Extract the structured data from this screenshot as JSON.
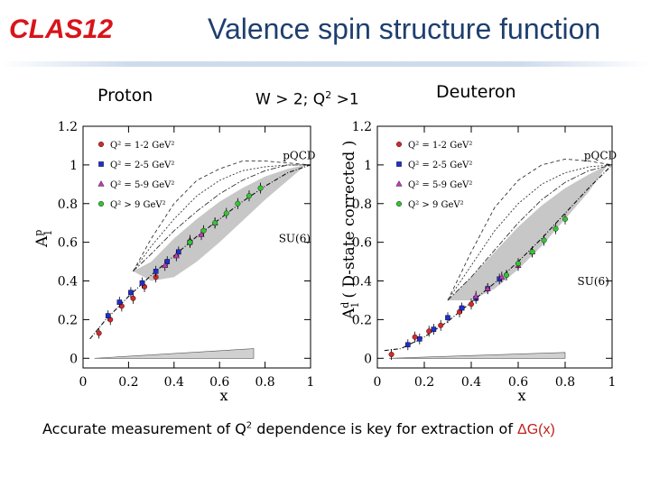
{
  "header": {
    "logo": "CLAS12",
    "title": "Valence spin structure function"
  },
  "labels": {
    "proton": "Proton",
    "kinematics_pre": "W > 2; Q",
    "kinematics_exp": "2",
    "kinematics_post": " >1",
    "deuteron": "Deuteron"
  },
  "footer": {
    "text_pre": "Accurate measurement of Q",
    "text_exp": "2",
    "text_mid": " dependence is key for extraction of ",
    "text_hl": "ΔG(x)"
  },
  "colors": {
    "q2_1_2": "#d42a2a",
    "q2_2_5": "#1f2fd0",
    "q2_5_9": "#c03ab8",
    "q2_gt9": "#36c436",
    "band": "#b4b4b4"
  },
  "chart_data": [
    {
      "name": "proton",
      "type": "scatter",
      "xlabel": "x",
      "ylabel": "A",
      "ylabel_sup": "p",
      "ylabel_sub": "1",
      "xlim": [
        0,
        1
      ],
      "ylim": [
        -0.05,
        1.2
      ],
      "x_ticks": [
        "0",
        "0.2",
        "0.4",
        "0.6",
        "0.8",
        "1"
      ],
      "y_ticks": [
        "0",
        "0.2",
        "0.4",
        "0.6",
        "0.8",
        "1",
        "1.2"
      ],
      "x_tick_values": [
        0,
        0.2,
        0.4,
        0.6,
        0.8,
        1
      ],
      "y_tick_values": [
        0,
        0.2,
        0.4,
        0.6,
        0.8,
        1.0,
        1.2
      ],
      "legend": [
        "Q² = 1-2 GeV²",
        "Q² = 2-5 GeV²",
        "Q² = 5-9 GeV²",
        "Q² > 9 GeV²"
      ],
      "annotations": [
        {
          "text": "pQCD",
          "x": 0.95,
          "y": 1.03
        },
        {
          "text": "SU(6)",
          "x": 0.93,
          "y": 0.6
        }
      ],
      "series": [
        {
          "name": "Q² = 1-2 GeV²",
          "color_key": "q2_1_2",
          "points": [
            [
              0.07,
              0.13
            ],
            [
              0.12,
              0.2
            ],
            [
              0.17,
              0.27
            ],
            [
              0.22,
              0.31
            ],
            [
              0.27,
              0.37
            ],
            [
              0.32,
              0.42
            ]
          ]
        },
        {
          "name": "Q² = 2-5 GeV²",
          "color_key": "q2_2_5",
          "points": [
            [
              0.11,
              0.22
            ],
            [
              0.16,
              0.29
            ],
            [
              0.21,
              0.34
            ],
            [
              0.26,
              0.39
            ],
            [
              0.32,
              0.45
            ],
            [
              0.37,
              0.5
            ],
            [
              0.42,
              0.55
            ],
            [
              0.47,
              0.6
            ]
          ]
        },
        {
          "name": "Q² = 5-9 GeV²",
          "color_key": "q2_5_9",
          "points": [
            [
              0.36,
              0.48
            ],
            [
              0.41,
              0.53
            ],
            [
              0.47,
              0.61
            ],
            [
              0.52,
              0.64
            ],
            [
              0.58,
              0.7
            ]
          ]
        },
        {
          "name": "Q² > 9 GeV²",
          "color_key": "q2_gt9",
          "points": [
            [
              0.47,
              0.6
            ],
            [
              0.53,
              0.66
            ],
            [
              0.58,
              0.7
            ],
            [
              0.63,
              0.75
            ],
            [
              0.68,
              0.8
            ],
            [
              0.73,
              0.84
            ],
            [
              0.78,
              0.88
            ]
          ]
        }
      ],
      "curve": [
        [
          0.03,
          0.1
        ],
        [
          0.1,
          0.2
        ],
        [
          0.2,
          0.32
        ],
        [
          0.3,
          0.43
        ],
        [
          0.4,
          0.53
        ],
        [
          0.5,
          0.63
        ],
        [
          0.6,
          0.72
        ],
        [
          0.7,
          0.81
        ],
        [
          0.8,
          0.89
        ],
        [
          0.9,
          0.96
        ],
        [
          1.0,
          1.0
        ]
      ],
      "band_upper": [
        [
          0.22,
          0.45
        ],
        [
          0.3,
          0.5
        ],
        [
          0.4,
          0.62
        ],
        [
          0.5,
          0.72
        ],
        [
          0.6,
          0.81
        ],
        [
          0.7,
          0.88
        ],
        [
          0.8,
          0.94
        ],
        [
          0.9,
          0.98
        ],
        [
          0.98,
          1.0
        ]
      ],
      "band_lower": [
        [
          0.98,
          1.0
        ],
        [
          0.9,
          0.92
        ],
        [
          0.8,
          0.82
        ],
        [
          0.7,
          0.71
        ],
        [
          0.6,
          0.6
        ],
        [
          0.5,
          0.5
        ],
        [
          0.4,
          0.42
        ],
        [
          0.3,
          0.4
        ],
        [
          0.22,
          0.45
        ]
      ],
      "dash_curves": [
        [
          [
            0.22,
            0.45
          ],
          [
            0.3,
            0.62
          ],
          [
            0.4,
            0.8
          ],
          [
            0.5,
            0.92
          ],
          [
            0.6,
            0.98
          ],
          [
            0.7,
            1.02
          ],
          [
            0.8,
            1.02
          ],
          [
            0.9,
            1.01
          ],
          [
            1.0,
            1.0
          ]
        ],
        [
          [
            0.22,
            0.45
          ],
          [
            0.3,
            0.58
          ],
          [
            0.4,
            0.72
          ],
          [
            0.5,
            0.84
          ],
          [
            0.6,
            0.92
          ],
          [
            0.7,
            0.97
          ],
          [
            0.8,
            0.99
          ],
          [
            0.9,
            1.0
          ],
          [
            1.0,
            1.0
          ]
        ],
        [
          [
            0.22,
            0.45
          ],
          [
            0.3,
            0.54
          ],
          [
            0.4,
            0.66
          ],
          [
            0.5,
            0.76
          ],
          [
            0.6,
            0.85
          ],
          [
            0.7,
            0.92
          ],
          [
            0.8,
            0.97
          ],
          [
            0.9,
            1.0
          ],
          [
            1.0,
            1.0
          ]
        ]
      ],
      "sys_band": [
        [
          0.05,
          0.0
        ],
        [
          0.75,
          0.05
        ],
        [
          0.75,
          0.0
        ]
      ]
    },
    {
      "name": "deuteron",
      "type": "scatter",
      "xlabel": "x",
      "ylabel": "A",
      "ylabel_sup": "d",
      "ylabel_sub": "1",
      "ylabel_rest": "( D-state corrected )",
      "xlim": [
        0,
        1
      ],
      "ylim": [
        -0.05,
        1.2
      ],
      "x_ticks": [
        "0",
        "0.2",
        "0.4",
        "0.6",
        "0.8",
        "1"
      ],
      "y_ticks": [
        "0",
        "0.2",
        "0.4",
        "0.6",
        "0.8",
        "1",
        "1.2"
      ],
      "x_tick_values": [
        0,
        0.2,
        0.4,
        0.6,
        0.8,
        1
      ],
      "y_tick_values": [
        0,
        0.2,
        0.4,
        0.6,
        0.8,
        1.0,
        1.2
      ],
      "legend": [
        "Q² = 1-2 GeV²",
        "Q² = 2-5 GeV²",
        "Q² = 5-9 GeV²",
        "Q² > 9 GeV²"
      ],
      "annotations": [
        {
          "text": "pQCD",
          "x": 0.95,
          "y": 1.03
        },
        {
          "text": "SU(6)",
          "x": 0.92,
          "y": 0.38
        }
      ],
      "series": [
        {
          "name": "Q² = 1-2 GeV²",
          "color_key": "q2_1_2",
          "points": [
            [
              0.06,
              0.02
            ],
            [
              0.16,
              0.11
            ],
            [
              0.22,
              0.14
            ],
            [
              0.27,
              0.17
            ],
            [
              0.35,
              0.24
            ],
            [
              0.4,
              0.28
            ]
          ]
        },
        {
          "name": "Q² = 2-5 GeV²",
          "color_key": "q2_2_5",
          "points": [
            [
              0.13,
              0.07
            ],
            [
              0.18,
              0.1
            ],
            [
              0.24,
              0.15
            ],
            [
              0.3,
              0.21
            ],
            [
              0.36,
              0.26
            ],
            [
              0.42,
              0.31
            ],
            [
              0.47,
              0.36
            ],
            [
              0.52,
              0.41
            ]
          ]
        },
        {
          "name": "Q² = 5-9 GeV²",
          "color_key": "q2_5_9",
          "points": [
            [
              0.42,
              0.32
            ],
            [
              0.47,
              0.36
            ],
            [
              0.53,
              0.42
            ],
            [
              0.6,
              0.48
            ],
            [
              0.66,
              0.55
            ]
          ]
        },
        {
          "name": "Q² > 9 GeV²",
          "color_key": "q2_gt9",
          "points": [
            [
              0.55,
              0.43
            ],
            [
              0.6,
              0.49
            ],
            [
              0.66,
              0.55
            ],
            [
              0.71,
              0.61
            ],
            [
              0.76,
              0.67
            ],
            [
              0.8,
              0.72
            ]
          ]
        }
      ],
      "curve": [
        [
          0.03,
          0.04
        ],
        [
          0.1,
          0.05
        ],
        [
          0.2,
          0.11
        ],
        [
          0.3,
          0.19
        ],
        [
          0.4,
          0.29
        ],
        [
          0.5,
          0.39
        ],
        [
          0.6,
          0.5
        ],
        [
          0.7,
          0.62
        ],
        [
          0.8,
          0.75
        ],
        [
          0.9,
          0.88
        ],
        [
          1.0,
          1.0
        ]
      ],
      "band_upper": [
        [
          0.3,
          0.3
        ],
        [
          0.4,
          0.42
        ],
        [
          0.5,
          0.55
        ],
        [
          0.6,
          0.68
        ],
        [
          0.7,
          0.79
        ],
        [
          0.8,
          0.88
        ],
        [
          0.9,
          0.95
        ],
        [
          0.98,
          1.0
        ]
      ],
      "band_lower": [
        [
          0.98,
          1.0
        ],
        [
          0.9,
          0.86
        ],
        [
          0.8,
          0.72
        ],
        [
          0.7,
          0.58
        ],
        [
          0.6,
          0.46
        ],
        [
          0.5,
          0.36
        ],
        [
          0.4,
          0.3
        ],
        [
          0.3,
          0.3
        ]
      ],
      "dash_curves": [
        [
          [
            0.3,
            0.3
          ],
          [
            0.4,
            0.55
          ],
          [
            0.5,
            0.78
          ],
          [
            0.6,
            0.92
          ],
          [
            0.7,
            1.0
          ],
          [
            0.8,
            1.03
          ],
          [
            0.9,
            1.02
          ],
          [
            1.0,
            1.0
          ]
        ],
        [
          [
            0.3,
            0.3
          ],
          [
            0.4,
            0.48
          ],
          [
            0.5,
            0.66
          ],
          [
            0.6,
            0.8
          ],
          [
            0.7,
            0.9
          ],
          [
            0.8,
            0.96
          ],
          [
            0.9,
            0.99
          ],
          [
            1.0,
            1.0
          ]
        ],
        [
          [
            0.3,
            0.3
          ],
          [
            0.4,
            0.42
          ],
          [
            0.5,
            0.56
          ],
          [
            0.6,
            0.7
          ],
          [
            0.7,
            0.82
          ],
          [
            0.8,
            0.91
          ],
          [
            0.9,
            0.97
          ],
          [
            1.0,
            1.0
          ]
        ]
      ],
      "sys_band": [
        [
          0.05,
          0.0
        ],
        [
          0.8,
          0.03
        ],
        [
          0.8,
          0.0
        ]
      ]
    }
  ]
}
